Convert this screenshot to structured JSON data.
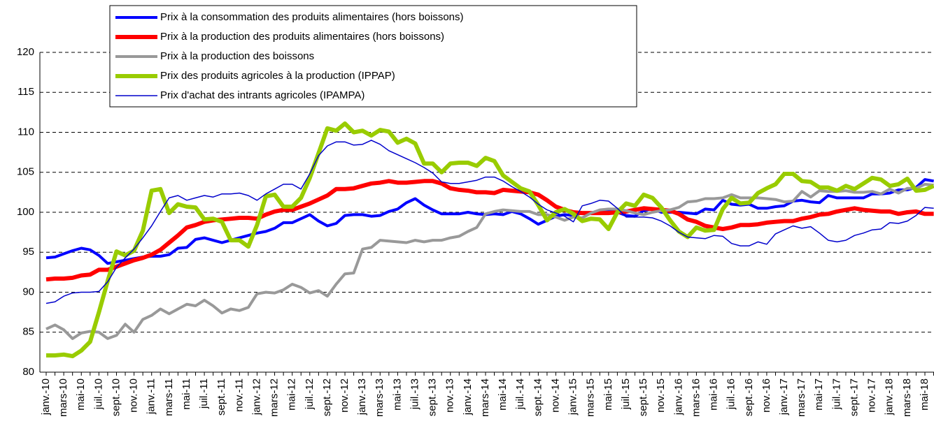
{
  "chart_data": {
    "type": "line",
    "categories": [
      "janv.-10",
      null,
      "mars-10",
      null,
      "mai-10",
      null,
      "juil.-10",
      null,
      "sept.-10",
      null,
      "nov.-10",
      null,
      "janv.-11",
      null,
      "mars-11",
      null,
      "mai-11",
      null,
      "juil.-11",
      null,
      "sept.-11",
      null,
      "nov.-11",
      null,
      "janv.-12",
      null,
      "mars-12",
      null,
      "mai-12",
      null,
      "juil.-12",
      null,
      "sept.-12",
      null,
      "nov.-12",
      null,
      "janv.-13",
      null,
      "mars-13",
      null,
      "mai-13",
      null,
      "juil.-13",
      null,
      "sept.-13",
      null,
      "nov.-13",
      null,
      "janv.-14",
      null,
      "mars-14",
      null,
      "mai-14",
      null,
      "juil.-14",
      null,
      "sept.-14",
      null,
      "nov.-14",
      null,
      "janv.-15",
      null,
      "mars-15",
      null,
      "mai-15",
      null,
      "juil.-15",
      null,
      "sept.-15",
      null,
      "nov.-15",
      null,
      "janv.-16",
      null,
      "mars-16",
      null,
      "mai-16",
      null,
      "juil.-16",
      null,
      "sept.-16",
      null,
      "nov.-16",
      null,
      "janv.-17",
      null,
      "mars-17",
      null,
      "mai-17",
      null,
      "juil.-17",
      null,
      "sept.-17",
      null,
      "nov.-17",
      null,
      "janv.-18",
      null,
      "mars-18",
      null,
      "mai-18",
      null
    ],
    "series": [
      {
        "name": "Prix à la consommation des produits alimentaires (hors boissons)",
        "color": "#0000ff",
        "width": 4,
        "values": [
          94.3,
          94.4,
          94.8,
          95.2,
          95.5,
          95.3,
          94.6,
          93.6,
          93.8,
          94.0,
          94.2,
          94.4,
          94.5,
          94.5,
          94.7,
          95.5,
          95.6,
          96.6,
          96.8,
          96.5,
          96.2,
          96.5,
          96.8,
          97.1,
          97.4,
          97.6,
          98.0,
          98.7,
          98.7,
          99.2,
          99.7,
          98.9,
          98.3,
          98.6,
          99.6,
          99.7,
          99.7,
          99.5,
          99.6,
          100.1,
          100.4,
          101.2,
          101.7,
          100.9,
          100.3,
          99.8,
          99.8,
          99.8,
          100.0,
          99.8,
          99.7,
          99.8,
          99.7,
          100.1,
          99.8,
          99.2,
          98.5,
          99.0,
          99.5,
          99.7,
          99.6,
          99.9,
          99.9,
          100.0,
          100.2,
          100.0,
          99.6,
          99.5,
          100.2,
          100.4,
          100.0,
          100.0,
          100.0,
          99.9,
          99.8,
          100.4,
          100.3,
          101.5,
          101.0,
          100.9,
          101.0,
          100.5,
          100.5,
          100.7,
          100.8,
          101.4,
          101.5,
          101.3,
          101.2,
          102.1,
          101.8,
          101.8,
          101.8,
          101.8,
          102.3,
          102.3,
          102.4,
          102.8,
          102.8,
          103.1,
          104.1,
          103.9
        ]
      },
      {
        "name": "Prix à la production des produits alimentaires (hors boissons)",
        "color": "#ff0000",
        "width": 6,
        "values": [
          91.6,
          91.7,
          91.7,
          91.8,
          92.1,
          92.2,
          92.8,
          92.8,
          93.2,
          93.6,
          94.0,
          94.3,
          94.7,
          95.3,
          96.2,
          97.1,
          98.1,
          98.4,
          98.8,
          99.0,
          99.1,
          99.2,
          99.3,
          99.3,
          99.2,
          99.7,
          100.1,
          100.3,
          100.3,
          100.7,
          101.1,
          101.6,
          102.1,
          102.9,
          102.9,
          103.0,
          103.3,
          103.6,
          103.7,
          103.9,
          103.7,
          103.7,
          103.8,
          103.9,
          103.9,
          103.6,
          103.0,
          102.8,
          102.7,
          102.5,
          102.5,
          102.4,
          102.8,
          102.7,
          102.6,
          102.5,
          102.2,
          101.5,
          100.7,
          100.3,
          100.0,
          99.9,
          99.9,
          99.9,
          99.9,
          100.0,
          100.1,
          100.3,
          100.5,
          100.4,
          100.3,
          100.2,
          99.8,
          99.1,
          98.8,
          98.3,
          98.1,
          97.9,
          98.1,
          98.4,
          98.4,
          98.5,
          98.7,
          98.8,
          98.9,
          98.9,
          99.2,
          99.4,
          99.7,
          99.8,
          100.1,
          100.3,
          100.5,
          100.3,
          100.2,
          100.1,
          100.1,
          99.8,
          100.0,
          100.1,
          99.8,
          99.8
        ]
      },
      {
        "name": "Prix à la production des boissons",
        "color": "#999999",
        "width": 4,
        "values": [
          85.4,
          85.9,
          85.3,
          84.2,
          84.9,
          85.1,
          85.0,
          84.2,
          84.6,
          86.0,
          85.0,
          86.6,
          87.1,
          87.9,
          87.3,
          87.9,
          88.5,
          88.3,
          89.0,
          88.3,
          87.4,
          87.9,
          87.7,
          88.1,
          89.8,
          90.0,
          89.9,
          90.3,
          91.0,
          90.6,
          89.9,
          90.2,
          89.5,
          91.0,
          92.3,
          92.4,
          95.4,
          95.6,
          96.5,
          96.4,
          96.3,
          96.2,
          96.5,
          96.3,
          96.5,
          96.5,
          96.8,
          97.0,
          97.6,
          98.1,
          99.8,
          100.1,
          100.3,
          100.2,
          100.1,
          100.1,
          99.7,
          99.7,
          99.4,
          99.0,
          99.4,
          99.3,
          99.9,
          100.3,
          100.4,
          100.4,
          100.2,
          99.9,
          99.7,
          100.0,
          100.2,
          100.3,
          100.6,
          101.3,
          101.4,
          101.7,
          101.7,
          101.8,
          102.2,
          101.8,
          101.8,
          101.8,
          101.7,
          101.6,
          101.3,
          101.4,
          102.6,
          101.9,
          102.7,
          102.6,
          102.6,
          102.7,
          102.5,
          102.5,
          102.6,
          102.3,
          102.9,
          102.4,
          103.0,
          103.0,
          103.5,
          103.4
        ]
      },
      {
        "name": "Prix des produits agricoles à la production (IPPAP)",
        "color": "#99cc00",
        "width": 6,
        "values": [
          82.1,
          82.1,
          82.2,
          82.0,
          82.7,
          83.8,
          87.5,
          91.4,
          95.1,
          94.6,
          95.2,
          97.7,
          102.7,
          102.9,
          99.9,
          101.0,
          100.7,
          100.6,
          99.1,
          99.2,
          98.8,
          96.5,
          96.5,
          95.7,
          98.4,
          102.0,
          102.2,
          100.7,
          100.7,
          101.8,
          104.3,
          107.4,
          110.5,
          110.2,
          111.1,
          110.0,
          110.2,
          109.6,
          110.3,
          110.1,
          108.7,
          109.2,
          108.6,
          106.1,
          106.1,
          105.0,
          106.1,
          106.2,
          106.2,
          105.8,
          106.8,
          106.4,
          104.6,
          103.8,
          103.0,
          102.6,
          100.9,
          99.0,
          100.0,
          100.4,
          99.8,
          98.9,
          99.2,
          99.1,
          97.9,
          100.0,
          101.1,
          100.8,
          102.2,
          101.8,
          100.6,
          99.0,
          97.6,
          96.9,
          98.1,
          97.7,
          97.8,
          100.4,
          101.8,
          101.1,
          101.2,
          102.4,
          103.0,
          103.5,
          104.8,
          104.8,
          103.9,
          103.8,
          103.1,
          103.1,
          102.7,
          103.3,
          102.9,
          103.6,
          104.3,
          104.1,
          103.3,
          103.5,
          104.2,
          102.7,
          102.8,
          103.3
        ]
      },
      {
        "name": "Prix d'achat des intrants agricoles (IPAMPA)",
        "color": "#0000cc",
        "width": 1.5,
        "values": [
          88.6,
          88.8,
          89.5,
          89.9,
          90.0,
          90.0,
          90.1,
          91.3,
          93.1,
          94.3,
          95.4,
          96.8,
          98.3,
          100.1,
          101.8,
          102.1,
          101.5,
          101.8,
          102.1,
          101.9,
          102.3,
          102.3,
          102.4,
          102.1,
          101.5,
          102.3,
          102.9,
          103.5,
          103.5,
          102.9,
          104.8,
          107.1,
          108.3,
          108.8,
          108.8,
          108.4,
          108.5,
          109.0,
          108.5,
          107.7,
          107.2,
          106.7,
          106.2,
          105.6,
          104.9,
          103.8,
          103.6,
          103.6,
          103.8,
          104.0,
          104.4,
          104.4,
          103.9,
          103.2,
          102.6,
          101.9,
          101.0,
          100.3,
          99.9,
          99.5,
          98.8,
          100.8,
          101.1,
          101.5,
          101.4,
          100.5,
          99.4,
          99.4,
          99.4,
          99.3,
          98.9,
          98.3,
          97.5,
          96.9,
          96.8,
          96.7,
          97.1,
          97.0,
          96.1,
          95.8,
          95.8,
          96.3,
          96.0,
          97.3,
          97.8,
          98.3,
          98.0,
          98.2,
          97.4,
          96.5,
          96.3,
          96.5,
          97.1,
          97.4,
          97.8,
          97.9,
          98.7,
          98.6,
          98.9,
          99.6,
          100.6,
          100.5
        ]
      }
    ],
    "ylim": [
      80,
      120
    ],
    "yticks": [
      80,
      85,
      90,
      95,
      100,
      105,
      110,
      115,
      120
    ],
    "grid": true,
    "legend": "top-left"
  }
}
